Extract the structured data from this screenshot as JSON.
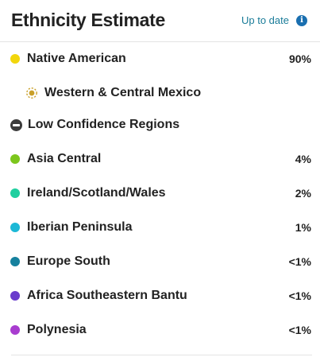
{
  "header": {
    "title": "Ethnicity Estimate",
    "status_label": "Up to date",
    "info_icon": "info-icon"
  },
  "primary_region": {
    "name": "Native American",
    "percent": "90%",
    "color": "#f2d60c",
    "subregion": {
      "name": "Western & Central Mexico",
      "icon": "community-icon",
      "color": "#c9a02a"
    }
  },
  "low_confidence": {
    "label": "Low Confidence Regions",
    "icon": "minus-circle-icon"
  },
  "regions": [
    {
      "name": "Asia Central",
      "percent": "4%",
      "color": "#7cc61c"
    },
    {
      "name": "Ireland/Scotland/Wales",
      "percent": "2%",
      "color": "#1fcf9f"
    },
    {
      "name": "Iberian Peninsula",
      "percent": "1%",
      "color": "#1cb8d6"
    },
    {
      "name": "Europe South",
      "percent": "<1%",
      "color": "#16819e"
    },
    {
      "name": "Africa Southeastern Bantu",
      "percent": "<1%",
      "color": "#6a3ccc"
    },
    {
      "name": "Polynesia",
      "percent": "<1%",
      "color": "#a83ccf"
    }
  ]
}
